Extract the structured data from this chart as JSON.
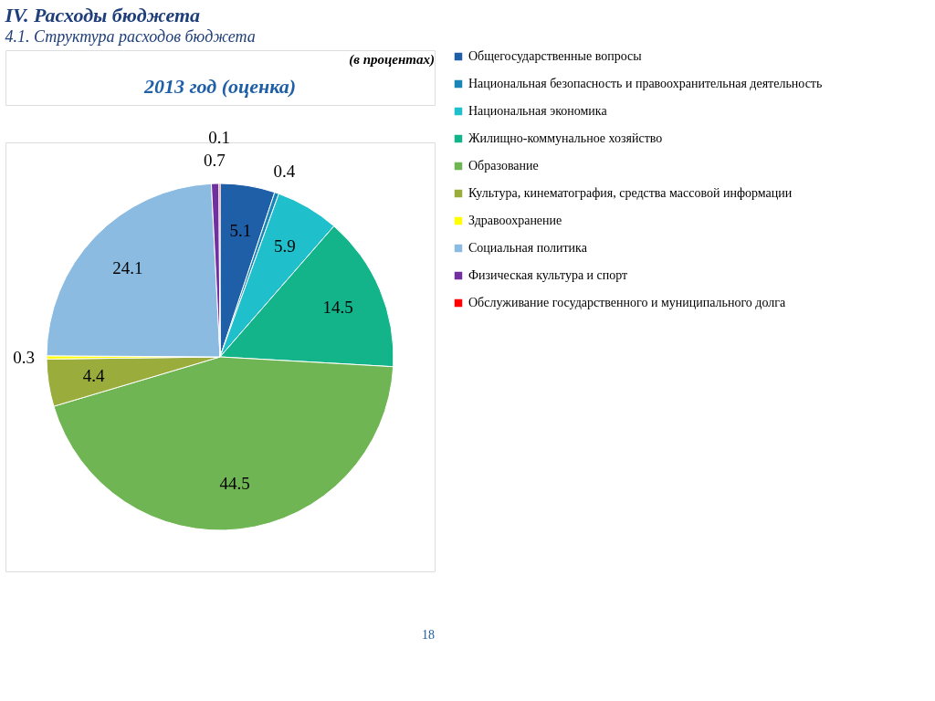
{
  "chart_data": {
    "type": "pie",
    "title": "IV. Расходы бюджета",
    "subtitle": "4.1. Структура расходов бюджета",
    "annotations": [
      "(в процентах)",
      "2013 год (оценка)",
      "18"
    ],
    "categories": [
      "Общегосударственные вопросы",
      "Национальная безопасность и правоохранительная деятельность",
      "Национальная экономика",
      "Жилищно-коммунальное хозяйство",
      "Образование",
      "Культура, кинематография, средства массовой информации",
      "Здравоохранение",
      "Социальная политика",
      "Физическая культура и спорт",
      "Обслуживание государственного и муниципального долга"
    ],
    "values": [
      5.1,
      0.4,
      5.9,
      14.5,
      44.5,
      4.4,
      0.3,
      24.1,
      0.7,
      0.1
    ],
    "colors": [
      "#1f5fa8",
      "#1a86b8",
      "#1fbfcc",
      "#14b48a",
      "#6fb553",
      "#9aad3c",
      "#ffff00",
      "#8bbbe0",
      "#7030a0",
      "#ff0000"
    ],
    "data_labels": true,
    "legend": "right"
  }
}
